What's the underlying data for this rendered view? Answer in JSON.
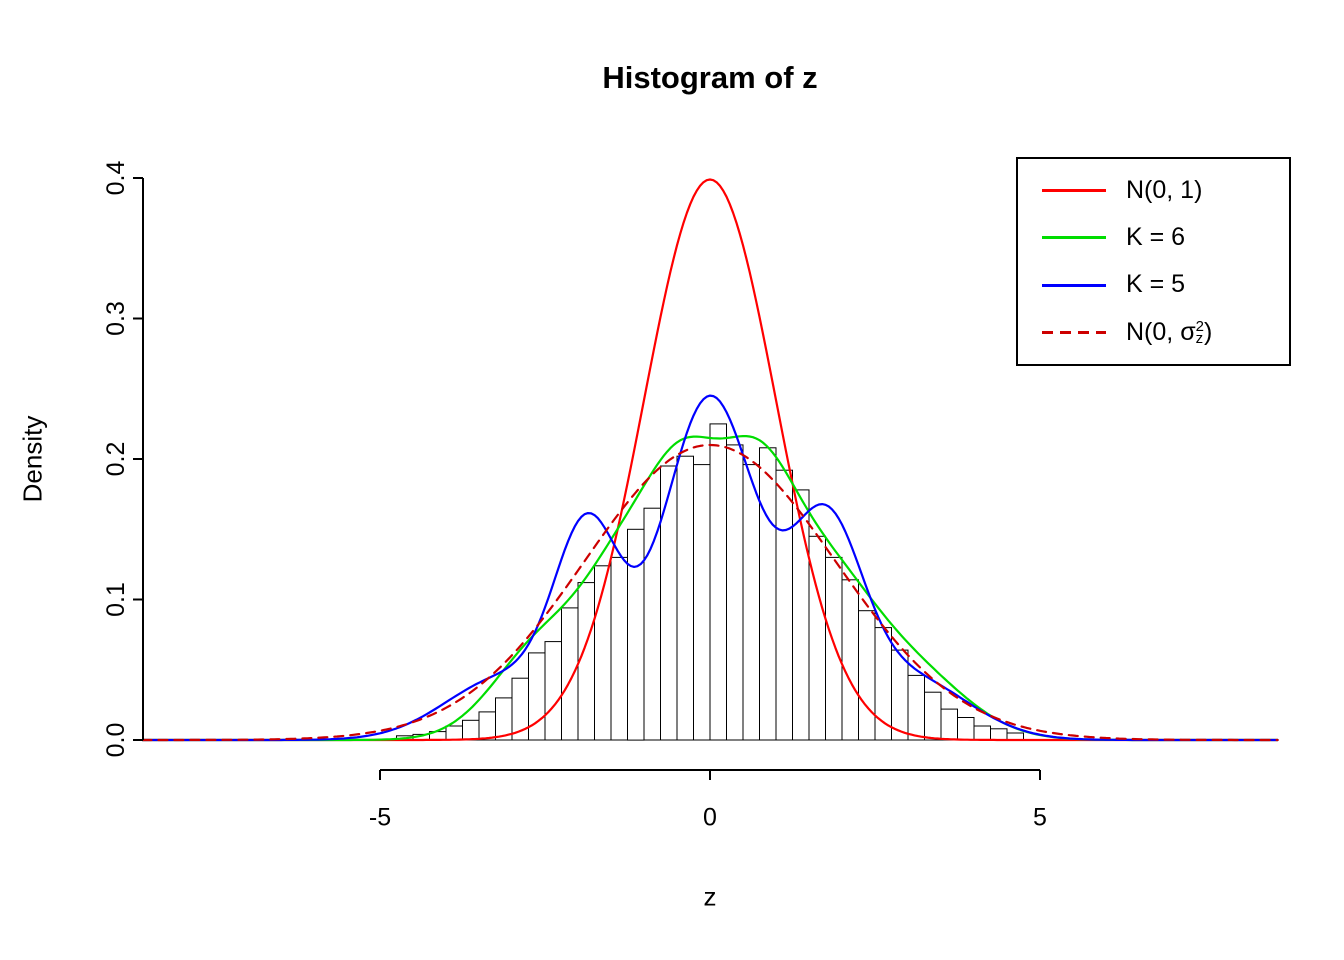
{
  "chart_data": {
    "type": "bar",
    "subtype": "histogram-with-density-curves",
    "title": "Histogram of z",
    "xlabel": "z",
    "ylabel": "Density",
    "xlim": [
      -8.6,
      8.6
    ],
    "ylim": [
      0,
      0.4
    ],
    "grid": false,
    "x_ticks": {
      "values": [
        -5,
        0,
        5
      ],
      "labels": [
        "-5",
        "0",
        "5"
      ]
    },
    "y_ticks": {
      "values": [
        0,
        0.1,
        0.2,
        0.3,
        0.4
      ],
      "labels": [
        "0.0",
        "0.1",
        "0.2",
        "0.3",
        "0.4"
      ]
    },
    "histogram": {
      "bin_start": -4.75,
      "bin_width": 0.25,
      "bar_fill": "#ffffff",
      "bar_stroke": "#000000",
      "densities": [
        0.003,
        0.004,
        0.006,
        0.01,
        0.014,
        0.02,
        0.03,
        0.044,
        0.062,
        0.07,
        0.094,
        0.112,
        0.124,
        0.13,
        0.15,
        0.165,
        0.195,
        0.202,
        0.196,
        0.225,
        0.21,
        0.196,
        0.208,
        0.192,
        0.178,
        0.145,
        0.13,
        0.114,
        0.092,
        0.08,
        0.064,
        0.046,
        0.034,
        0.022,
        0.016,
        0.01,
        0.008,
        0.005
      ]
    },
    "curves": [
      {
        "name": "N(0, 1)",
        "color": "#FF0000",
        "dashed": false,
        "mixture": [
          {
            "w": 1,
            "mu": 0,
            "sd": 1
          }
        ]
      },
      {
        "name": "K = 6",
        "color": "#00DD00",
        "dashed": false,
        "mixture": [
          {
            "w": 0.13,
            "mu": -2.5,
            "sd": 0.75
          },
          {
            "w": 0.15,
            "mu": -1.3,
            "sd": 0.6
          },
          {
            "w": 0.2,
            "mu": -0.4,
            "sd": 0.55
          },
          {
            "w": 0.24,
            "mu": 0.65,
            "sd": 0.6
          },
          {
            "w": 0.16,
            "mu": 1.7,
            "sd": 0.7
          },
          {
            "w": 0.12,
            "mu": 2.9,
            "sd": 0.9
          }
        ]
      },
      {
        "name": "K = 5",
        "color": "#0000FF",
        "dashed": false,
        "mixture": [
          {
            "w": 0.44,
            "mu": 0,
            "sd": 0.72
          },
          {
            "w": 0.17,
            "mu": -1.85,
            "sd": 0.5
          },
          {
            "w": 0.19,
            "mu": 1.75,
            "sd": 0.55
          },
          {
            "w": 0.1,
            "mu": -3.1,
            "sd": 0.9
          },
          {
            "w": 0.1,
            "mu": 3.0,
            "sd": 0.9
          }
        ]
      },
      {
        "name": "N(0, sigma_z^2)",
        "color": "#CD0000",
        "dashed": true,
        "mixture": [
          {
            "w": 1,
            "mu": 0,
            "sd": 1.9
          }
        ]
      }
    ],
    "legend": {
      "position": "top-right",
      "items": [
        {
          "label": "N(0, 1)",
          "color": "#FF0000",
          "dashed": false
        },
        {
          "label": "K = 6",
          "color": "#00DD00",
          "dashed": false
        },
        {
          "label": "K = 5",
          "color": "#0000FF",
          "dashed": false
        },
        {
          "label": "N(0, σz²)",
          "label_parts": {
            "pre": "N(0, ",
            "symbol": "σ",
            "sub": "z",
            "sup": "2",
            "post": ")"
          },
          "color": "#CD0000",
          "dashed": true
        }
      ]
    }
  }
}
